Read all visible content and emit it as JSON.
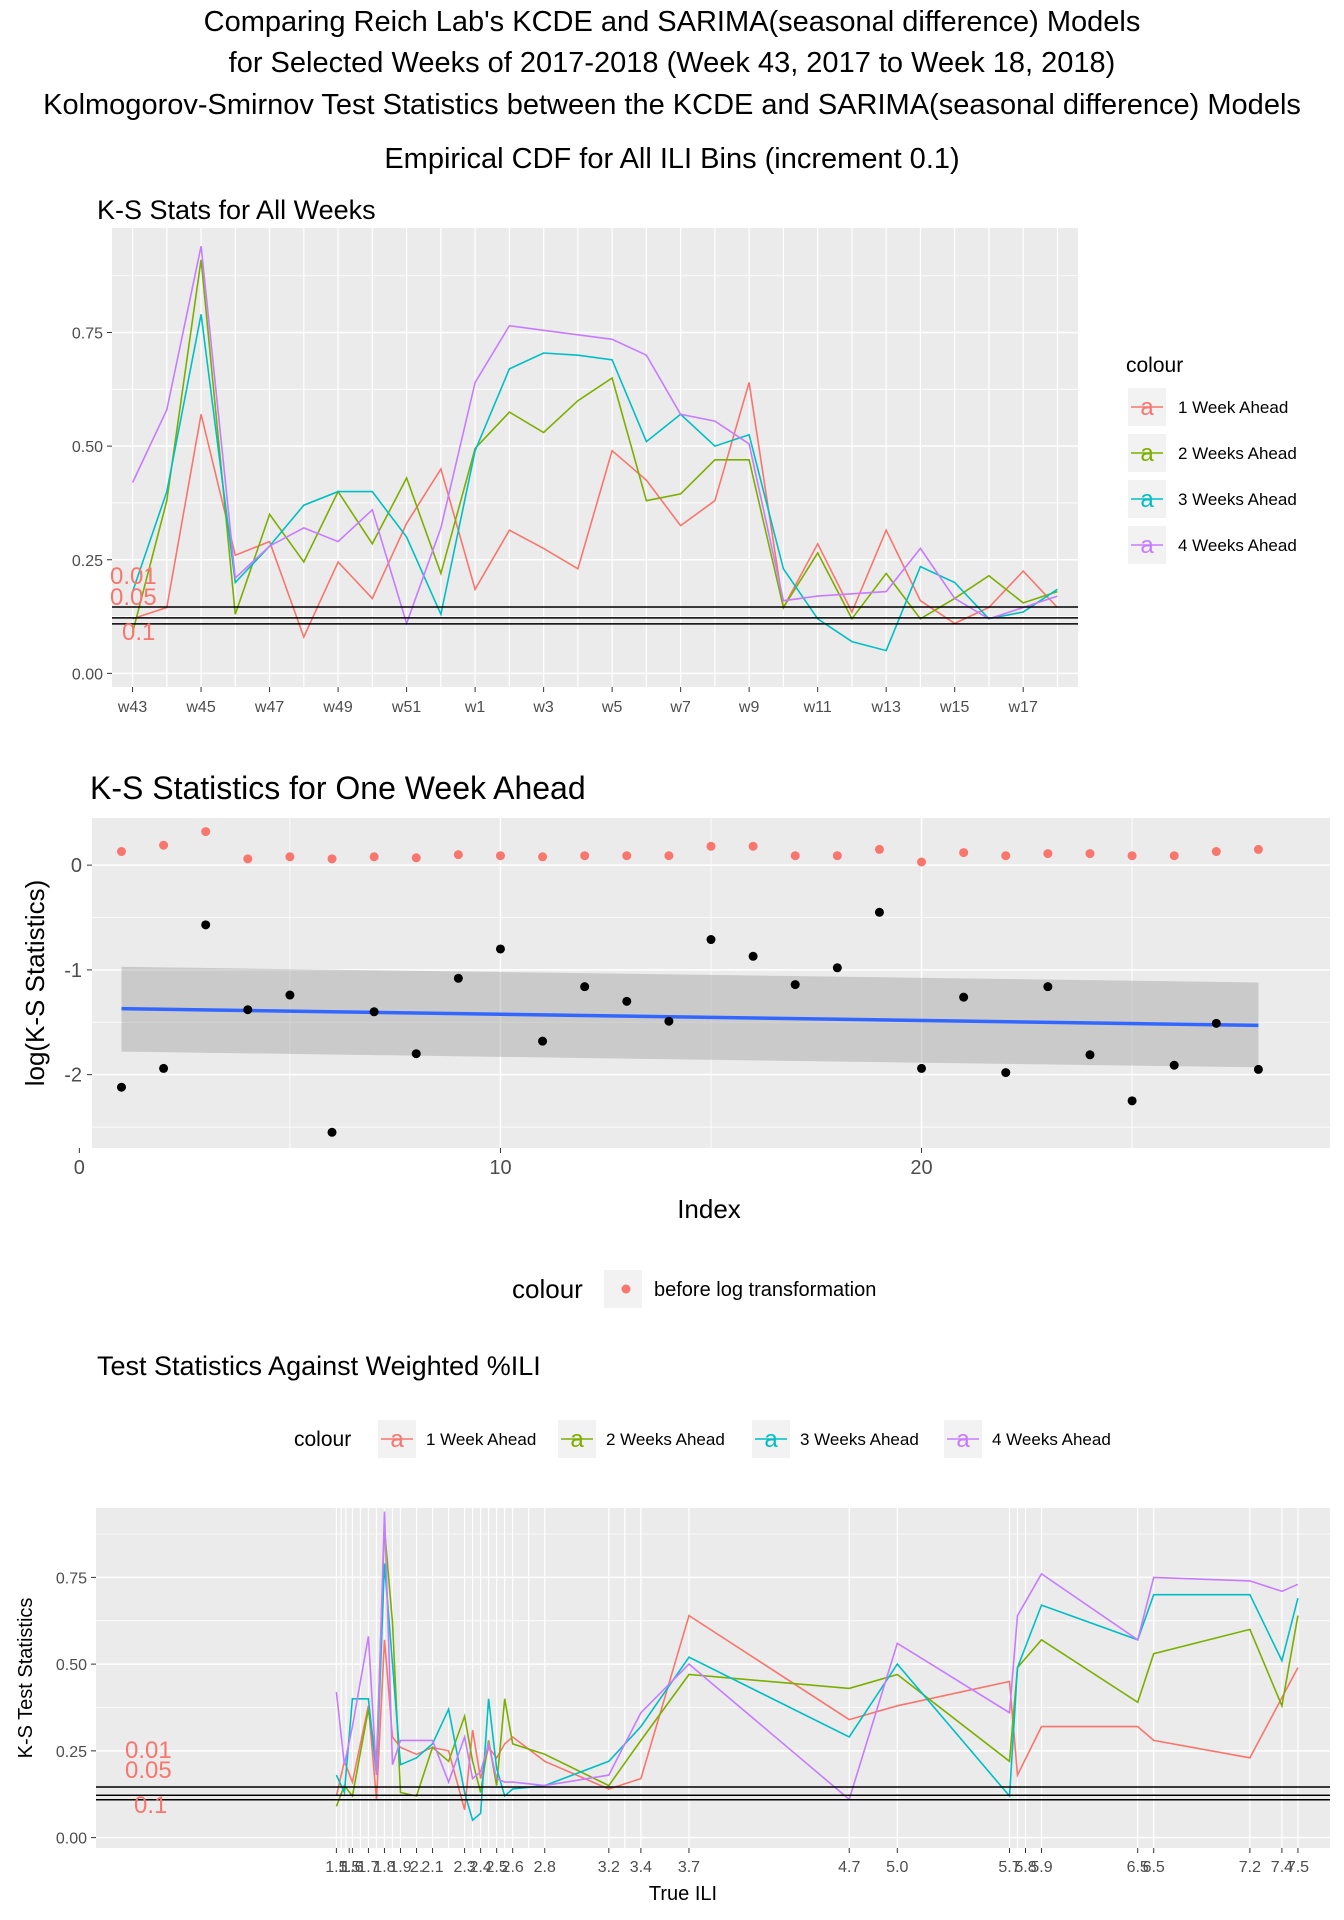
{
  "titles": [
    "Comparing Reich Lab's KCDE and SARIMA(seasonal difference) Models",
    "for Selected Weeks of 2017-2018 (Week 43, 2017 to Week 18, 2018)",
    "Kolmogorov-Smirnov Test Statistics between the KCDE and SARIMA(seasonal difference) Models",
    "Empirical CDF for All ILI Bins (increment 0.1)"
  ],
  "colors": {
    "w1": "#F8766D",
    "w2": "#7CAE00",
    "w3": "#00BFC4",
    "w4": "#C77CFF",
    "panel": "#EBEBEB",
    "grid": "#FFFFFF",
    "smooth": "#3366FF",
    "ribbon": "#999999"
  },
  "chart_data": [
    {
      "type": "line",
      "title": "K-S Stats for All Weeks",
      "x": [
        "w43",
        "w44",
        "w45",
        "w46",
        "w47",
        "w48",
        "w49",
        "w50",
        "w51",
        "w52",
        "w1",
        "w2",
        "w3",
        "w4",
        "w5",
        "w6",
        "w7",
        "w8",
        "w9",
        "w10",
        "w11",
        "w12",
        "w13",
        "w14",
        "w15",
        "w16",
        "w17",
        "w18"
      ],
      "x_tick_labels": [
        "w43",
        "w45",
        "w47",
        "w49",
        "w51",
        "w1",
        "w3",
        "w5",
        "w7",
        "w9",
        "w11",
        "w13",
        "w15",
        "w17"
      ],
      "ylim": [
        -0.03,
        0.98
      ],
      "y_ticks": [
        0.0,
        0.25,
        0.5,
        0.75
      ],
      "y_tick_labels": [
        "0.00",
        "0.25",
        "0.50",
        "0.75"
      ],
      "legend": {
        "title": "colour",
        "position": "right",
        "glyph": "a"
      },
      "series": [
        {
          "name": "1 Week Ahead",
          "color": "#F8766D",
          "values": [
            0.12,
            0.145,
            0.57,
            0.26,
            0.29,
            0.08,
            0.245,
            0.165,
            0.33,
            0.45,
            0.185,
            0.315,
            0.275,
            0.23,
            0.49,
            0.425,
            0.325,
            0.38,
            0.64,
            0.145,
            0.285,
            0.135,
            0.315,
            0.16,
            0.11,
            0.145,
            0.225,
            0.145
          ]
        },
        {
          "name": "2 Weeks Ahead",
          "color": "#7CAE00",
          "values": [
            0.09,
            0.38,
            0.91,
            0.13,
            0.35,
            0.245,
            0.4,
            0.285,
            0.43,
            0.22,
            0.495,
            0.575,
            0.53,
            0.6,
            0.65,
            0.38,
            0.395,
            0.47,
            0.47,
            0.145,
            0.265,
            0.12,
            0.22,
            0.12,
            0.165,
            0.215,
            0.155,
            0.18
          ]
        },
        {
          "name": "3 Weeks Ahead",
          "color": "#00BFC4",
          "values": [
            0.18,
            0.4,
            0.79,
            0.2,
            0.28,
            0.37,
            0.4,
            0.4,
            0.3,
            0.13,
            0.49,
            0.67,
            0.705,
            0.7,
            0.69,
            0.51,
            0.57,
            0.5,
            0.525,
            0.23,
            0.12,
            0.07,
            0.05,
            0.235,
            0.2,
            0.12,
            0.135,
            0.185
          ]
        },
        {
          "name": "4 Weeks Ahead",
          "color": "#C77CFF",
          "values": [
            0.42,
            0.58,
            0.94,
            0.21,
            0.28,
            0.32,
            0.29,
            0.36,
            0.11,
            0.32,
            0.64,
            0.765,
            0.755,
            0.745,
            0.735,
            0.7,
            0.57,
            0.555,
            0.505,
            0.16,
            0.17,
            0.175,
            0.18,
            0.275,
            0.165,
            0.12,
            0.145,
            0.17
          ]
        }
      ],
      "reference_lines": [
        {
          "label": "0.01",
          "y": 0.146
        },
        {
          "label": "0.05",
          "y": 0.122
        },
        {
          "label": "0.1",
          "y": 0.109
        }
      ]
    },
    {
      "type": "scatter",
      "title": "K-S Statistics for One Week Ahead",
      "xlabel": "Index",
      "ylabel": "log(K-S Statistics)",
      "xlim": [
        0.3,
        29.7
      ],
      "ylim": [
        -2.7,
        0.45
      ],
      "x_ticks": [
        0,
        10,
        20
      ],
      "x_tick_labels": [
        "0",
        "10",
        "20"
      ],
      "y_ticks": [
        0,
        -1,
        -2
      ],
      "y_tick_labels": [
        "0",
        "-1",
        "-2"
      ],
      "log_points": [
        [
          1,
          -2.12
        ],
        [
          2,
          -1.94
        ],
        [
          3,
          -0.57
        ],
        [
          4,
          -1.38
        ],
        [
          5,
          -1.24
        ],
        [
          6,
          -2.55
        ],
        [
          7,
          -1.4
        ],
        [
          8,
          -1.8
        ],
        [
          9,
          -1.08
        ],
        [
          10,
          -0.8
        ],
        [
          11,
          -1.68
        ],
        [
          12,
          -1.16
        ],
        [
          13,
          -1.3
        ],
        [
          14,
          -1.49
        ],
        [
          15,
          -0.71
        ],
        [
          16,
          -0.87
        ],
        [
          17,
          -1.14
        ],
        [
          18,
          -0.98
        ],
        [
          19,
          -0.45
        ],
        [
          20,
          -1.94
        ],
        [
          21,
          -1.26
        ],
        [
          22,
          -1.98
        ],
        [
          23,
          -1.16
        ],
        [
          24,
          -1.81
        ],
        [
          25,
          -2.25
        ],
        [
          26,
          -1.91
        ],
        [
          27,
          -1.51
        ],
        [
          28,
          -1.95
        ]
      ],
      "raw_points": [
        [
          1,
          0.13
        ],
        [
          2,
          0.19
        ],
        [
          3,
          0.32
        ],
        [
          4,
          0.06
        ],
        [
          5,
          0.08
        ],
        [
          6,
          0.06
        ],
        [
          7,
          0.08
        ],
        [
          8,
          0.07
        ],
        [
          9,
          0.1
        ],
        [
          10,
          0.09
        ],
        [
          11,
          0.08
        ],
        [
          12,
          0.09
        ],
        [
          13,
          0.09
        ],
        [
          14,
          0.09
        ],
        [
          15,
          0.18
        ],
        [
          16,
          0.18
        ],
        [
          17,
          0.09
        ],
        [
          18,
          0.09
        ],
        [
          19,
          0.15
        ],
        [
          20,
          0.03
        ],
        [
          21,
          0.12
        ],
        [
          22,
          0.09
        ],
        [
          23,
          0.11
        ],
        [
          24,
          0.11
        ],
        [
          25,
          0.09
        ],
        [
          26,
          0.09
        ],
        [
          27,
          0.13
        ],
        [
          28,
          0.15
        ]
      ],
      "smooth": {
        "x": [
          1,
          28
        ],
        "y": [
          -1.37,
          -1.53
        ],
        "ribbon_low": [
          -1.78,
          -1.93
        ],
        "ribbon_high": [
          -0.97,
          -1.12
        ]
      },
      "legend": {
        "title": "colour",
        "position": "bottom",
        "label": "before log transformation",
        "color": "#F8766D"
      }
    },
    {
      "type": "line",
      "title": "Test Statistics Against Weighted %ILI",
      "xlabel": "True ILI",
      "ylabel": "K-S Test Statistics",
      "xlim": [
        0.0,
        7.7
      ],
      "ylim": [
        -0.03,
        0.95
      ],
      "y_ticks": [
        0.0,
        0.25,
        0.5,
        0.75
      ],
      "y_tick_labels": [
        "0.00",
        "0.25",
        "0.50",
        "0.75"
      ],
      "x_tick_labels": [
        {
          "v": 1.5,
          "l": "1.5"
        },
        {
          "v": 1.58,
          "l": "1.5"
        },
        {
          "v": 1.6,
          "l": "1.6"
        },
        {
          "v": 1.7,
          "l": "1.7"
        },
        {
          "v": 1.8,
          "l": "1.8"
        },
        {
          "v": 1.9,
          "l": "1.9"
        },
        {
          "v": 2.0,
          "l": "2."
        },
        {
          "v": 2.1,
          "l": "2.1"
        },
        {
          "v": 2.3,
          "l": "2.3"
        },
        {
          "v": 2.4,
          "l": "2.4"
        },
        {
          "v": 2.5,
          "l": "2.5"
        },
        {
          "v": 2.6,
          "l": "2.6"
        },
        {
          "v": 2.8,
          "l": "2.8"
        },
        {
          "v": 3.2,
          "l": "3.2"
        },
        {
          "v": 3.4,
          "l": "3.4"
        },
        {
          "v": 3.7,
          "l": "3.7"
        },
        {
          "v": 4.7,
          "l": "4.7"
        },
        {
          "v": 5.0,
          "l": "5.0"
        },
        {
          "v": 5.7,
          "l": "5.7"
        },
        {
          "v": 5.8,
          "l": "5.8"
        },
        {
          "v": 5.9,
          "l": "5.9"
        },
        {
          "v": 6.5,
          "l": "6.5"
        },
        {
          "v": 6.6,
          "l": "6.5"
        },
        {
          "v": 7.2,
          "l": "7.2"
        },
        {
          "v": 7.4,
          "l": "7.4"
        },
        {
          "v": 7.5,
          "l": "7.5"
        }
      ],
      "x_grid": [
        1.5,
        1.53,
        1.56,
        1.6,
        1.65,
        1.7,
        1.75,
        1.8,
        1.85,
        1.9,
        2.0,
        2.1,
        2.2,
        2.3,
        2.35,
        2.4,
        2.45,
        2.5,
        2.55,
        2.6,
        2.7,
        2.8,
        3.2,
        3.3,
        3.4,
        3.7,
        4.7,
        5.0,
        5.7,
        5.75,
        5.8,
        5.9,
        6.5,
        6.6,
        7.2,
        7.4,
        7.5
      ],
      "legend": {
        "title": "colour",
        "position": "top",
        "glyph": "a"
      },
      "series": [
        {
          "name": "1 Week Ahead",
          "color": "#F8766D",
          "x": [
            1.5,
            1.55,
            1.6,
            1.7,
            1.75,
            1.8,
            1.85,
            1.9,
            2.0,
            2.1,
            2.2,
            2.3,
            2.35,
            2.4,
            2.45,
            2.5,
            2.55,
            2.6,
            2.8,
            3.2,
            3.4,
            3.7,
            4.7,
            5.0,
            5.7,
            5.75,
            5.9,
            6.5,
            6.6,
            7.2,
            7.5
          ],
          "y": [
            0.12,
            0.22,
            0.16,
            0.38,
            0.11,
            0.57,
            0.29,
            0.26,
            0.24,
            0.26,
            0.25,
            0.08,
            0.31,
            0.17,
            0.26,
            0.23,
            0.27,
            0.29,
            0.22,
            0.14,
            0.17,
            0.64,
            0.34,
            0.38,
            0.45,
            0.18,
            0.32,
            0.32,
            0.28,
            0.23,
            0.49
          ]
        },
        {
          "name": "2 Weeks Ahead",
          "color": "#7CAE00",
          "x": [
            1.5,
            1.55,
            1.6,
            1.7,
            1.75,
            1.8,
            1.85,
            1.9,
            2.0,
            2.1,
            2.2,
            2.3,
            2.35,
            2.4,
            2.45,
            2.5,
            2.55,
            2.6,
            2.8,
            3.2,
            3.4,
            3.7,
            4.7,
            5.0,
            5.7,
            5.75,
            5.9,
            6.5,
            6.6,
            7.2,
            7.4,
            7.5
          ],
          "y": [
            0.09,
            0.15,
            0.12,
            0.37,
            0.22,
            0.89,
            0.62,
            0.13,
            0.12,
            0.26,
            0.22,
            0.35,
            0.22,
            0.13,
            0.28,
            0.15,
            0.4,
            0.27,
            0.24,
            0.15,
            0.28,
            0.47,
            0.43,
            0.47,
            0.22,
            0.49,
            0.57,
            0.39,
            0.53,
            0.6,
            0.38,
            0.64
          ]
        },
        {
          "name": "3 Weeks Ahead",
          "color": "#00BFC4",
          "x": [
            1.5,
            1.55,
            1.6,
            1.7,
            1.75,
            1.8,
            1.85,
            1.9,
            2.0,
            2.1,
            2.2,
            2.3,
            2.35,
            2.4,
            2.45,
            2.5,
            2.55,
            2.6,
            2.8,
            3.2,
            3.4,
            3.7,
            4.7,
            5.0,
            5.7,
            5.75,
            5.9,
            6.5,
            6.6,
            7.2,
            7.4,
            7.5
          ],
          "y": [
            0.18,
            0.13,
            0.4,
            0.4,
            0.18,
            0.79,
            0.5,
            0.21,
            0.23,
            0.27,
            0.37,
            0.13,
            0.05,
            0.07,
            0.4,
            0.2,
            0.12,
            0.14,
            0.15,
            0.22,
            0.32,
            0.52,
            0.29,
            0.5,
            0.12,
            0.49,
            0.67,
            0.57,
            0.7,
            0.7,
            0.51,
            0.69
          ]
        },
        {
          "name": "4 Weeks Ahead",
          "color": "#C77CFF",
          "x": [
            1.5,
            1.55,
            1.6,
            1.7,
            1.75,
            1.8,
            1.85,
            1.9,
            2.0,
            2.1,
            2.2,
            2.3,
            2.35,
            2.4,
            2.45,
            2.5,
            2.55,
            2.6,
            2.8,
            3.2,
            3.4,
            3.7,
            4.7,
            5.0,
            5.7,
            5.75,
            5.9,
            6.5,
            6.6,
            7.2,
            7.4,
            7.5
          ],
          "y": [
            0.42,
            0.21,
            0.32,
            0.58,
            0.18,
            0.94,
            0.21,
            0.28,
            0.28,
            0.28,
            0.16,
            0.29,
            0.17,
            0.19,
            0.27,
            0.17,
            0.16,
            0.16,
            0.15,
            0.18,
            0.36,
            0.5,
            0.11,
            0.56,
            0.36,
            0.64,
            0.76,
            0.57,
            0.75,
            0.74,
            0.71,
            0.73
          ]
        }
      ],
      "reference_lines": [
        {
          "label": "0.01",
          "y": 0.146
        },
        {
          "label": "0.05",
          "y": 0.122
        },
        {
          "label": "0.1",
          "y": 0.109
        }
      ]
    }
  ]
}
